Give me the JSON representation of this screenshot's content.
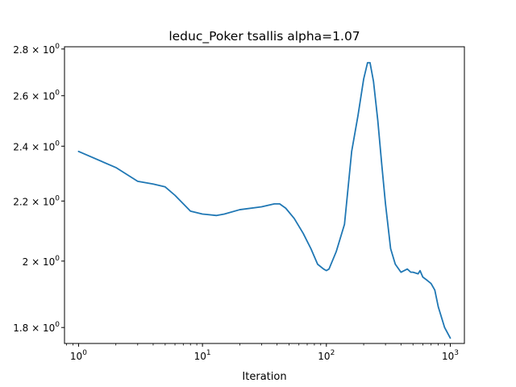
{
  "chart_data": {
    "type": "line",
    "title": "leduc_Poker  tsallis  alpha=1.07",
    "xlabel": "Iteration",
    "ylabel": "",
    "x_scale": "log",
    "y_scale": "log",
    "xlim": [
      0.77,
      1300
    ],
    "ylim": [
      1.755,
      2.81
    ],
    "grid": false,
    "x_ticks": [
      {
        "value": 1,
        "base": "10",
        "exp": "0"
      },
      {
        "value": 10,
        "base": "10",
        "exp": "1"
      },
      {
        "value": 100,
        "base": "10",
        "exp": "2"
      },
      {
        "value": 1000,
        "base": "10",
        "exp": "3"
      }
    ],
    "y_ticks": [
      {
        "value": 1.8,
        "mant": "1.8",
        "base": "10",
        "exp": "0"
      },
      {
        "value": 2.0,
        "mant": "2",
        "base": "10",
        "exp": "0"
      },
      {
        "value": 2.2,
        "mant": "2.2",
        "base": "10",
        "exp": "0"
      },
      {
        "value": 2.4,
        "mant": "2.4",
        "base": "10",
        "exp": "0"
      },
      {
        "value": 2.6,
        "mant": "2.6",
        "base": "10",
        "exp": "0"
      },
      {
        "value": 2.8,
        "mant": "2.8",
        "base": "10",
        "exp": "0"
      }
    ],
    "series": [
      {
        "color": "#1f77b4",
        "x": [
          1,
          2,
          3,
          4,
          5,
          6,
          8,
          10,
          13,
          15,
          20,
          30,
          38,
          42,
          47,
          55,
          65,
          75,
          85,
          95,
          100,
          105,
          120,
          140,
          160,
          180,
          200,
          215,
          225,
          240,
          260,
          280,
          300,
          330,
          360,
          400,
          450,
          480,
          500,
          550,
          570,
          600,
          650,
          700,
          750,
          800,
          900,
          1000
        ],
        "y": [
          2.38,
          2.32,
          2.27,
          2.26,
          2.25,
          2.22,
          2.165,
          2.155,
          2.15,
          2.155,
          2.17,
          2.18,
          2.19,
          2.19,
          2.175,
          2.14,
          2.09,
          2.04,
          1.99,
          1.975,
          1.97,
          1.975,
          2.03,
          2.12,
          2.38,
          2.52,
          2.67,
          2.74,
          2.74,
          2.66,
          2.5,
          2.33,
          2.19,
          2.04,
          1.99,
          1.965,
          1.975,
          1.965,
          1.965,
          1.96,
          1.97,
          1.95,
          1.94,
          1.93,
          1.91,
          1.86,
          1.8,
          1.77
        ]
      }
    ]
  }
}
